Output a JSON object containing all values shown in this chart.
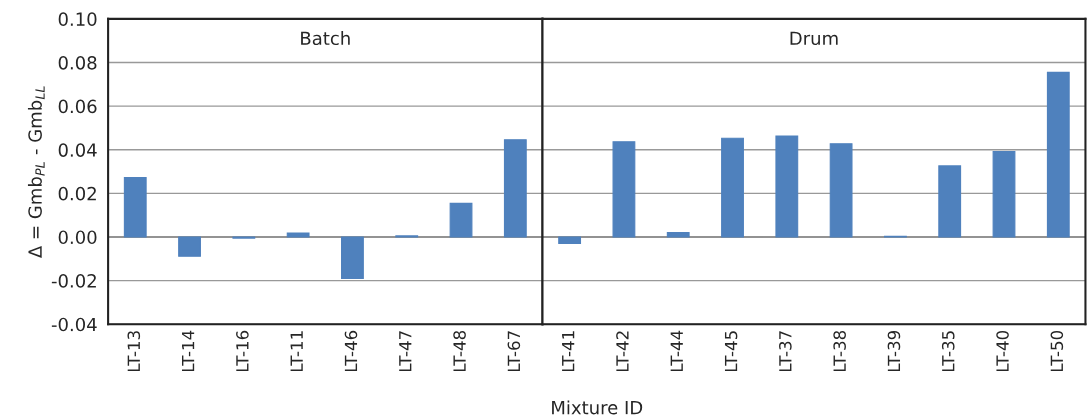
{
  "chart_data": [
    {
      "type": "bar",
      "title": "Batch",
      "ylabel": "Δ = Gmb$_{PL}$ - Gmb$_{LL}$",
      "xlabel": "Mixture ID",
      "categories": [
        "LT-13",
        "LT-14",
        "LT-16",
        "LT-11",
        "LT-46",
        "LT-47",
        "LT-48",
        "LT-67"
      ],
      "series": [
        {
          "color": "#4f81bd",
          "values": [
            0.0273,
            -0.0088,
            -0.0005,
            0.0018,
            -0.019,
            0.0005,
            0.0154,
            0.0446
          ]
        }
      ],
      "ylim": [
        -0.04,
        0.1
      ],
      "yticks": [
        {
          "value": -0.04,
          "label": "-0.04"
        },
        {
          "value": -0.02,
          "label": "-0.02"
        },
        {
          "value": 0,
          "label": "0.00"
        },
        {
          "value": 0.02,
          "label": "0.02"
        },
        {
          "value": 0.04,
          "label": "0.04"
        },
        {
          "value": 0.06,
          "label": "0.06"
        },
        {
          "value": 0.08,
          "label": "0.08"
        },
        {
          "value": 0.1,
          "label": "0.10"
        }
      ],
      "grid": "y"
    },
    {
      "type": "bar",
      "title": "Drum",
      "categories": [
        "LT-41",
        "LT-42",
        "LT-44",
        "LT-45",
        "LT-37",
        "LT-38",
        "LT-39",
        "LT-35",
        "LT-40",
        "LT-50"
      ],
      "series": [
        {
          "color": "#4f81bd",
          "values": [
            -0.003,
            0.0437,
            0.002,
            0.0453,
            0.0463,
            0.0427,
            0.0003,
            0.0326,
            0.0392,
            0.0755
          ]
        }
      ],
      "ylim": [
        -0.04,
        0.1
      ],
      "yticks": [
        {
          "value": -0.04,
          "label": null
        },
        {
          "value": -0.02,
          "label": null
        },
        {
          "value": 0,
          "label": null
        },
        {
          "value": 0.02,
          "label": null
        },
        {
          "value": 0.04,
          "label": null
        },
        {
          "value": 0.06,
          "label": null
        },
        {
          "value": 0.08,
          "label": null
        },
        {
          "value": 0.1,
          "label": null
        }
      ],
      "grid": "y",
      "tick_labels": "x"
    }
  ]
}
